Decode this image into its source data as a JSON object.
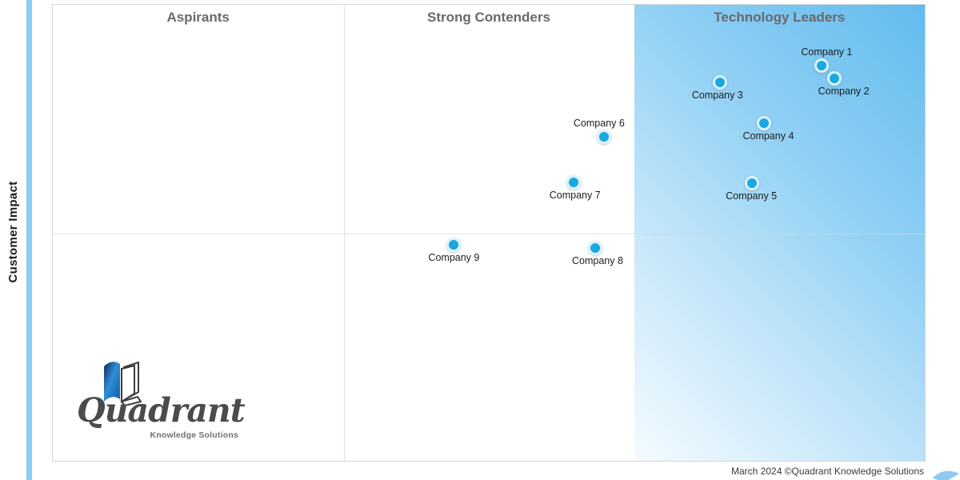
{
  "chart_data": {
    "type": "scatter",
    "title": "",
    "xlabel": "",
    "ylabel": "Customer Impact",
    "quadrant_columns": [
      "Aspirants",
      "Strong Contenders",
      "Technology Leaders"
    ],
    "highlighted_column": "Technology Leaders",
    "axes": {
      "x_range": [
        0,
        100
      ],
      "y_range": [
        0,
        100
      ],
      "grid": "three columns, one horizontal midline",
      "column_boundaries_pct": [
        33.4,
        66.7
      ],
      "row_boundary_pct": 50
    },
    "points": [
      {
        "name": "Company 1",
        "x_pct": 88.2,
        "y_pct": 86.7,
        "quadrant": "Technology Leaders",
        "label_side": "above",
        "label_dx": 6
      },
      {
        "name": "Company 2",
        "x_pct": 89.6,
        "y_pct": 83.9,
        "quadrant": "Technology Leaders",
        "label_side": "below",
        "label_dx": 12
      },
      {
        "name": "Company 3",
        "x_pct": 76.5,
        "y_pct": 82.9,
        "quadrant": "Technology Leaders",
        "label_side": "below",
        "label_dx": -3
      },
      {
        "name": "Company 4",
        "x_pct": 81.6,
        "y_pct": 74.0,
        "quadrant": "Technology Leaders",
        "label_side": "below",
        "label_dx": 5
      },
      {
        "name": "Company 5",
        "x_pct": 80.2,
        "y_pct": 60.8,
        "quadrant": "Technology Leaders",
        "label_side": "below",
        "label_dx": -1
      },
      {
        "name": "Company 6",
        "x_pct": 63.2,
        "y_pct": 71.0,
        "quadrant": "Strong Contenders",
        "label_side": "above",
        "label_dx": -6
      },
      {
        "name": "Company 7",
        "x_pct": 59.7,
        "y_pct": 61.0,
        "quadrant": "Strong Contenders",
        "label_side": "below",
        "label_dx": 2
      },
      {
        "name": "Company 8",
        "x_pct": 62.2,
        "y_pct": 46.7,
        "quadrant": "Strong Contenders",
        "label_side": "below",
        "label_dx": 3
      },
      {
        "name": "Company 9",
        "x_pct": 46.0,
        "y_pct": 47.4,
        "quadrant": "Strong Contenders",
        "label_side": "below",
        "label_dx": 0
      }
    ]
  },
  "logo": {
    "name": "Quadrant",
    "tagline": "Knowledge Solutions"
  },
  "footer": {
    "text": "March 2024 ©Quadrant Knowledge Solutions"
  },
  "colors": {
    "point_fill": "#1BA7E1",
    "point_ring": "#FFFFFF",
    "highlight_gradient_dark": "#62BBEE",
    "highlight_gradient_light": "#F4FBFF",
    "axis_arrow": "#8BCDF4",
    "header_text": "#69696C",
    "label_text": "#1C1C1C"
  }
}
